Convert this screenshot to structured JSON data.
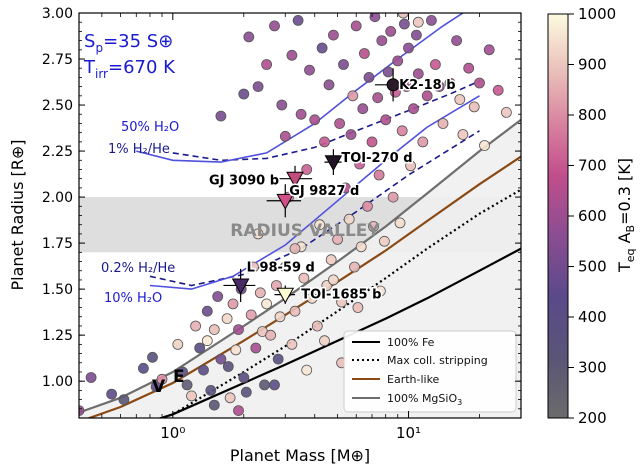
{
  "chart_data": {
    "type": "scatter",
    "xlabel": "Planet Mass [M⊕]",
    "ylabel": "Planet Radius [R⊕]",
    "x_scale": "log",
    "xlim": [
      0.4,
      30
    ],
    "ylim": [
      0.8,
      3.0
    ],
    "x_tick_labels": [
      "10⁰",
      "10¹"
    ],
    "y_ticks": [
      1.0,
      1.25,
      1.5,
      1.75,
      2.0,
      2.25,
      2.5,
      2.75,
      3.0
    ],
    "y_tick_labels": [
      "1.00",
      "1.25",
      "1.50",
      "1.75",
      "2.00",
      "2.25",
      "2.50",
      "2.75",
      "3.00"
    ],
    "legend_position": "lower-right",
    "colorbar": {
      "label": "T_eq A_B=0.3 [K]",
      "label_prefix": "T",
      "label_sub": "eq",
      "label_mid": " A",
      "label_sub2": "B",
      "label_suffix": "=0.3 [K]",
      "range": [
        200,
        1000
      ],
      "ticks": [
        200,
        300,
        400,
        500,
        600,
        700,
        800,
        900,
        1000
      ],
      "tick_labels": [
        "200",
        "300",
        "400",
        "500",
        "600",
        "700",
        "800",
        "900",
        "1000"
      ]
    },
    "annotations": {
      "sp_line": "Sₚ=35 S⊕",
      "tirr_line": "Tᵢᵣᵣ=670 K",
      "sp_prefix": "S",
      "sp_sub": "p",
      "sp_suffix": "=35 S⊕",
      "tirr_prefix": "T",
      "tirr_sub": "irr",
      "tirr_suffix": "=670 K",
      "radius_valley": "RADIUS VALLEY",
      "h2o_50": "50% H₂O",
      "h2he_1": "1% H₂/He",
      "h2he_02": "0.2% H₂/He",
      "h2o_10": "10% H₂O",
      "venus": "V",
      "earth": "E"
    },
    "radius_valley_band": [
      1.7,
      2.0
    ],
    "series": [
      {
        "name": "100% Fe",
        "style": "solid",
        "color": "#000000",
        "points": [
          [
            0.8,
            0.78
          ],
          [
            1.0,
            0.82
          ],
          [
            2,
            0.99
          ],
          [
            3,
            1.09
          ],
          [
            5,
            1.22
          ],
          [
            8,
            1.34
          ],
          [
            12,
            1.45
          ],
          [
            20,
            1.6
          ],
          [
            30,
            1.72
          ]
        ]
      },
      {
        "name": "Max coll. stripping",
        "style": "dotted",
        "color": "#000000",
        "points": [
          [
            0.8,
            0.78
          ],
          [
            1,
            0.82
          ],
          [
            2,
            1.05
          ],
          [
            3,
            1.19
          ],
          [
            5,
            1.38
          ],
          [
            8,
            1.56
          ],
          [
            12,
            1.72
          ],
          [
            20,
            1.91
          ],
          [
            30,
            2.04
          ]
        ]
      },
      {
        "name": "Earth-like",
        "style": "solid",
        "color": "#8b4a14",
        "points": [
          [
            0.4,
            0.78
          ],
          [
            0.6,
            0.86
          ],
          [
            1,
            0.99
          ],
          [
            2,
            1.22
          ],
          [
            3,
            1.36
          ],
          [
            5,
            1.54
          ],
          [
            8,
            1.71
          ],
          [
            12,
            1.87
          ],
          [
            20,
            2.07
          ],
          [
            30,
            2.22
          ]
        ]
      },
      {
        "name": "100% MgSiO₃",
        "legend_prefix": "100% MgSiO",
        "legend_sub": "3",
        "style": "solid",
        "color": "#6e6e6e",
        "points": [
          [
            0.4,
            0.83
          ],
          [
            0.6,
            0.91
          ],
          [
            1,
            1.05
          ],
          [
            2,
            1.3
          ],
          [
            3,
            1.45
          ],
          [
            5,
            1.65
          ],
          [
            8,
            1.84
          ],
          [
            12,
            2.02
          ],
          [
            20,
            2.25
          ],
          [
            30,
            2.42
          ]
        ]
      },
      {
        "name": "1% H₂/He",
        "style": "dashed",
        "color": "#1a1a8c",
        "points": [
          [
            1.0,
            2.24
          ],
          [
            1.6,
            2.2
          ],
          [
            2.5,
            2.21
          ],
          [
            4,
            2.27
          ],
          [
            6,
            2.36
          ],
          [
            10,
            2.47
          ],
          [
            15,
            2.56
          ],
          [
            20,
            2.63
          ]
        ]
      },
      {
        "name": "0.2% H₂/He",
        "style": "dashed",
        "color": "#1a1a8c",
        "points": [
          [
            0.8,
            1.57
          ],
          [
            1.2,
            1.52
          ],
          [
            2,
            1.58
          ],
          [
            3.5,
            1.72
          ],
          [
            6,
            1.92
          ],
          [
            10,
            2.12
          ],
          [
            15,
            2.26
          ],
          [
            20,
            2.36
          ]
        ]
      },
      {
        "name": "50% H₂O",
        "style": "solid",
        "color": "#5050dd",
        "points": [
          [
            0.7,
            2.25
          ],
          [
            1,
            2.2
          ],
          [
            1.6,
            2.19
          ],
          [
            2.5,
            2.24
          ],
          [
            4,
            2.4
          ],
          [
            6,
            2.58
          ],
          [
            9,
            2.75
          ],
          [
            14,
            2.93
          ],
          [
            17,
            3.0
          ]
        ]
      },
      {
        "name": "10% H₂O",
        "style": "solid",
        "color": "#5050dd",
        "points": [
          [
            0.8,
            1.52
          ],
          [
            1.2,
            1.5
          ],
          [
            1.8,
            1.57
          ],
          [
            3,
            1.74
          ],
          [
            5,
            1.98
          ],
          [
            8,
            2.2
          ],
          [
            12,
            2.38
          ],
          [
            20,
            2.55
          ]
        ]
      }
    ],
    "labeled_planets": [
      {
        "name": "K2-18 b",
        "x": 8.6,
        "y": 2.61,
        "xerr": 1.4,
        "yerr": 0.09,
        "marker": "circle",
        "color": "#2a1a2a"
      },
      {
        "name": "TOI-270 d",
        "x": 4.8,
        "y": 2.19,
        "xerr": 0.4,
        "yerr": 0.07,
        "marker": "triangle",
        "color": "#201424"
      },
      {
        "name": "GJ 3090 b",
        "x": 3.3,
        "y": 2.1,
        "xerr": 0.6,
        "yerr": 0.07,
        "marker": "triangle",
        "color": "#c04d7e"
      },
      {
        "name": "GJ 9827 d",
        "x": 3.0,
        "y": 1.98,
        "xerr": 0.5,
        "yerr": 0.09,
        "marker": "triangle",
        "color": "#d04f86"
      },
      {
        "name": "L 98-59 d",
        "x": 1.94,
        "y": 1.52,
        "xerr": 0.3,
        "yerr": 0.09,
        "marker": "triangle",
        "color": "#4a2a65"
      },
      {
        "name": "TOI-1685 b",
        "x": 3.0,
        "y": 1.47,
        "xerr": 0.3,
        "yerr": 0.05,
        "marker": "triangle",
        "color": "#fafad0"
      }
    ],
    "background_planets": [
      [
        0.4,
        0.84,
        580
      ],
      [
        0.45,
        1.02,
        520
      ],
      [
        0.55,
        0.93,
        450
      ],
      [
        0.62,
        0.9,
        310
      ],
      [
        0.75,
        1.07,
        430
      ],
      [
        0.82,
        1.13,
        360
      ],
      [
        0.85,
        0.97,
        470
      ],
      [
        0.9,
        1.01,
        800
      ],
      [
        1.05,
        1.2,
        920
      ],
      [
        1.1,
        1.05,
        380
      ],
      [
        1.15,
        0.98,
        290
      ],
      [
        1.2,
        0.92,
        900
      ],
      [
        1.25,
        1.3,
        860
      ],
      [
        1.3,
        1.18,
        410
      ],
      [
        1.35,
        1.06,
        420
      ],
      [
        1.4,
        1.22,
        970
      ],
      [
        1.4,
        1.38,
        480
      ],
      [
        1.45,
        0.95,
        370
      ],
      [
        1.5,
        1.28,
        880
      ],
      [
        1.55,
        1.46,
        540
      ],
      [
        1.6,
        2.44,
        510
      ],
      [
        1.6,
        1.12,
        500
      ],
      [
        1.7,
        1.34,
        930
      ],
      [
        1.72,
        1.08,
        360
      ],
      [
        1.75,
        0.91,
        900
      ],
      [
        1.8,
        1.42,
        820
      ],
      [
        1.85,
        1.17,
        950
      ],
      [
        1.9,
        1.28,
        610
      ],
      [
        1.95,
        1.5,
        470
      ],
      [
        2.0,
        2.56,
        480
      ],
      [
        2.0,
        1.02,
        410
      ],
      [
        2.05,
        0.94,
        350
      ],
      [
        2.1,
        2.87,
        560
      ],
      [
        2.15,
        1.36,
        830
      ],
      [
        2.2,
        1.62,
        890
      ],
      [
        2.25,
        1.18,
        620
      ],
      [
        2.3,
        2.6,
        520
      ],
      [
        2.35,
        1.48,
        860
      ],
      [
        2.4,
        1.27,
        900
      ],
      [
        2.45,
        0.98,
        300
      ],
      [
        2.5,
        1.42,
        960
      ],
      [
        2.5,
        2.72,
        640
      ],
      [
        2.6,
        1.25,
        860
      ],
      [
        2.7,
        2.93,
        580
      ],
      [
        2.75,
        1.52,
        840
      ],
      [
        2.8,
        1.12,
        390
      ],
      [
        2.85,
        1.35,
        930
      ],
      [
        2.9,
        2.5,
        560
      ],
      [
        3.0,
        1.62,
        900
      ],
      [
        3.0,
        2.33,
        630
      ],
      [
        3.1,
        2.0,
        800
      ],
      [
        3.2,
        2.77,
        600
      ],
      [
        3.3,
        1.38,
        880
      ],
      [
        3.4,
        2.96,
        480
      ],
      [
        3.5,
        1.73,
        950
      ],
      [
        3.5,
        2.45,
        610
      ],
      [
        3.6,
        1.56,
        880
      ],
      [
        3.7,
        2.15,
        720
      ],
      [
        3.8,
        2.69,
        570
      ],
      [
        3.9,
        1.45,
        930
      ],
      [
        4.0,
        2.42,
        630
      ],
      [
        4.1,
        1.3,
        880
      ],
      [
        4.2,
        1.85,
        960
      ],
      [
        4.3,
        2.81,
        470
      ],
      [
        4.4,
        2.3,
        700
      ],
      [
        4.5,
        1.52,
        920
      ],
      [
        4.6,
        2.61,
        560
      ],
      [
        4.7,
        1.66,
        910
      ],
      [
        4.8,
        2.88,
        600
      ],
      [
        5.0,
        1.77,
        860
      ],
      [
        5.1,
        2.4,
        640
      ],
      [
        5.2,
        1.43,
        900
      ],
      [
        5.3,
        2.72,
        520
      ],
      [
        5.4,
        2.05,
        640
      ],
      [
        5.6,
        1.88,
        930
      ],
      [
        5.7,
        2.34,
        600
      ],
      [
        5.8,
        2.55,
        820
      ],
      [
        5.9,
        1.62,
        870
      ],
      [
        6.0,
        2.93,
        620
      ],
      [
        6.2,
        2.18,
        710
      ],
      [
        6.3,
        1.73,
        940
      ],
      [
        6.4,
        2.48,
        590
      ],
      [
        6.5,
        2.78,
        660
      ],
      [
        6.7,
        1.95,
        800
      ],
      [
        6.8,
        2.65,
        520
      ],
      [
        7.0,
        2.3,
        690
      ],
      [
        7.1,
        1.84,
        870
      ],
      [
        7.2,
        2.98,
        560
      ],
      [
        7.4,
        2.54,
        620
      ],
      [
        7.5,
        2.12,
        760
      ],
      [
        7.7,
        2.85,
        590
      ],
      [
        7.9,
        1.76,
        910
      ],
      [
        8.0,
        2.42,
        640
      ],
      [
        8.2,
        2.68,
        520
      ],
      [
        8.4,
        2.9,
        600
      ],
      [
        8.6,
        2.0,
        820
      ],
      [
        8.8,
        2.57,
        700
      ],
      [
        9.0,
        2.74,
        600
      ],
      [
        9.2,
        1.86,
        940
      ],
      [
        9.4,
        2.36,
        780
      ],
      [
        9.6,
        2.94,
        510
      ],
      [
        9.8,
        2.6,
        640
      ],
      [
        10.0,
        2.81,
        560
      ],
      [
        10.2,
        2.17,
        880
      ],
      [
        10.5,
        2.48,
        620
      ],
      [
        10.8,
        2.88,
        540
      ],
      [
        11.0,
        2.67,
        600
      ],
      [
        11.5,
        2.3,
        820
      ],
      [
        12.0,
        2.55,
        640
      ],
      [
        12.5,
        2.96,
        560
      ],
      [
        13.0,
        2.72,
        700
      ],
      [
        14.0,
        2.4,
        860
      ],
      [
        15.0,
        2.62,
        620
      ],
      [
        16.0,
        2.85,
        580
      ],
      [
        17.0,
        2.34,
        900
      ],
      [
        18.0,
        2.7,
        650
      ],
      [
        19.0,
        2.49,
        880
      ],
      [
        20.0,
        2.62,
        640
      ],
      [
        21.0,
        2.28,
        960
      ],
      [
        22.0,
        2.8,
        610
      ],
      [
        24.0,
        2.58,
        700
      ],
      [
        26.0,
        2.46,
        900
      ],
      [
        4.4,
        1.22,
        920
      ],
      [
        5.2,
        1.1,
        880
      ],
      [
        3.7,
        1.06,
        960
      ],
      [
        6.1,
        1.4,
        880
      ],
      [
        3.2,
        1.2,
        900
      ],
      [
        7.6,
        1.49,
        950
      ],
      [
        2.7,
        0.98,
        420
      ],
      [
        1.5,
        0.87,
        310
      ],
      [
        1.9,
        0.84,
        640
      ],
      [
        3.3,
        1.72,
        870
      ],
      [
        2.3,
        1.8,
        940
      ],
      [
        4.8,
        1.55,
        930
      ],
      [
        11.0,
        2.95,
        900
      ],
      [
        9.5,
        3.0,
        880
      ],
      [
        13.5,
        2.6,
        580
      ],
      [
        16.5,
        2.53,
        900
      ]
    ]
  }
}
